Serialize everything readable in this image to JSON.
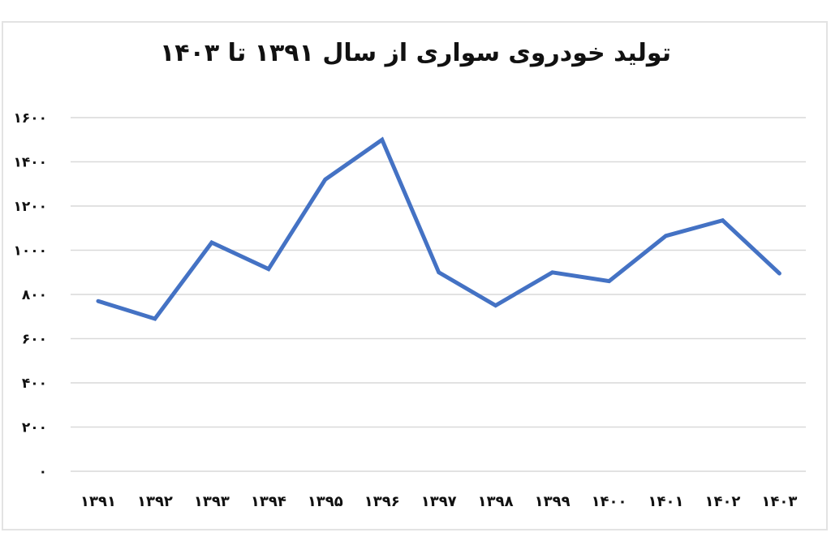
{
  "chart_data": {
    "type": "line",
    "title": "تولید خودروی سواری از سال ۱۳۹۱ تا ۱۴۰۳",
    "xlabel": "",
    "ylabel": "",
    "categories": [
      "۱۳۹۱",
      "۱۳۹۲",
      "۱۳۹۳",
      "۱۳۹۴",
      "۱۳۹۵",
      "۱۳۹۶",
      "۱۳۹۷",
      "۱۳۹۸",
      "۱۳۹۹",
      "۱۴۰۰",
      "۱۴۰۱",
      "۱۴۰۲",
      "۱۴۰۳"
    ],
    "x": [
      1391,
      1392,
      1393,
      1394,
      1395,
      1396,
      1397,
      1398,
      1399,
      1400,
      1401,
      1402,
      1403
    ],
    "series": [
      {
        "name": "تولید خودروی سواری",
        "color": "#4472c4",
        "values": [
          770,
          690,
          1035,
          915,
          1320,
          1500,
          900,
          750,
          900,
          860,
          1065,
          1135,
          895
        ]
      }
    ],
    "ylim": [
      0,
      1600
    ],
    "yticks": [
      0,
      200,
      400,
      600,
      800,
      1000,
      1200,
      1400,
      1600
    ],
    "ytick_labels": [
      "۰",
      "۲۰۰",
      "۴۰۰",
      "۶۰۰",
      "۸۰۰",
      "۱۰۰۰",
      "۱۲۰۰",
      "۱۴۰۰",
      "۱۶۰۰"
    ],
    "grid": true,
    "legend": "none"
  }
}
